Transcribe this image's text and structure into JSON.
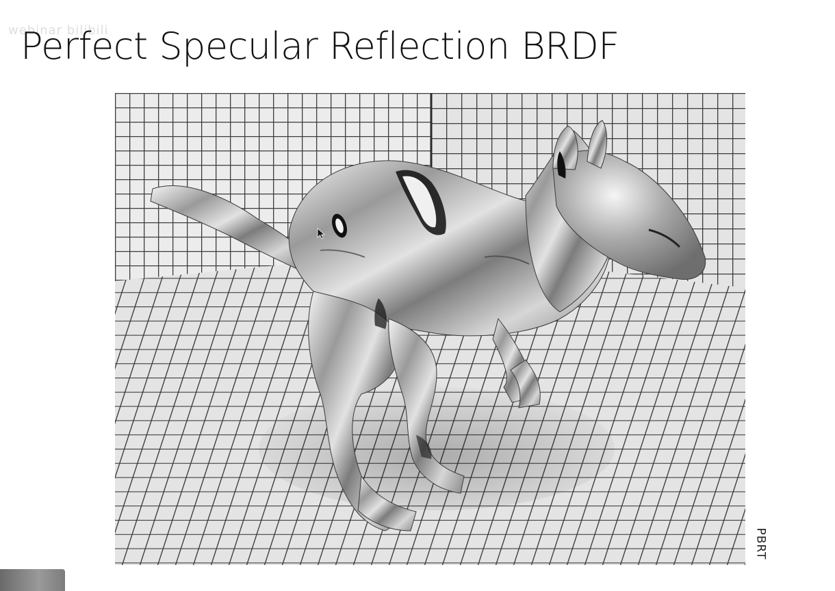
{
  "slide": {
    "title": "Perfect Specular Reflection BRDF",
    "credit": "PBRT"
  },
  "figure": {
    "alt": "Chrome kangaroo model in a tiled room"
  },
  "watermark": {
    "text": "webinar bilibili"
  },
  "colors": {
    "background": "#ffffff",
    "title": "#111111",
    "tile": "#e9e9e9",
    "grout": "#3a3a3a"
  },
  "icons": {
    "cursor": "arrow-cursor-icon"
  }
}
